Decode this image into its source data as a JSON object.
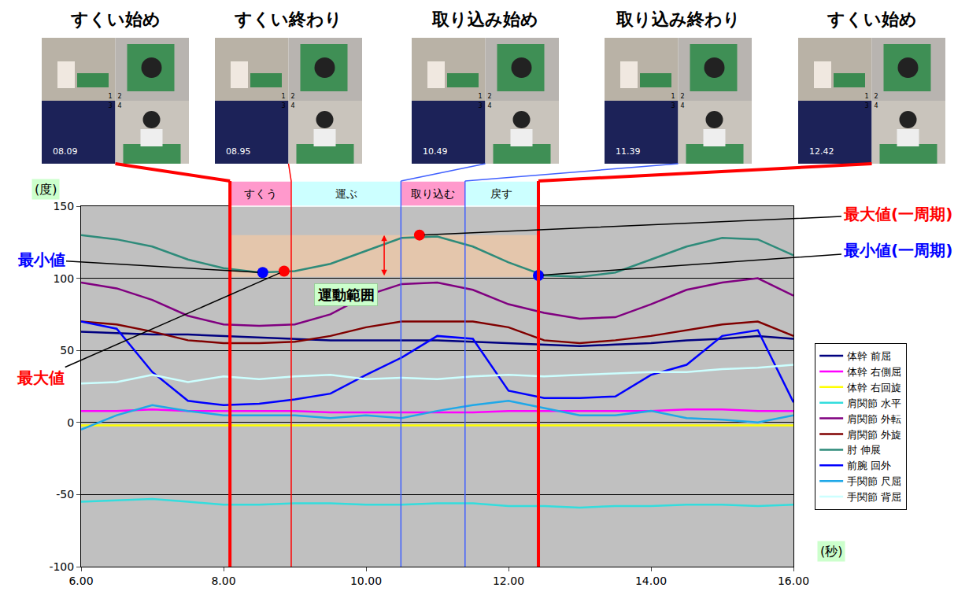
{
  "frames": [
    {
      "label": "すくい始め",
      "time": 8.09,
      "time_label": "08.09",
      "color": "#ff0000"
    },
    {
      "label": "すくい終わり",
      "time": 8.95,
      "time_label": "08.95",
      "color": "#ff0000"
    },
    {
      "label": "取り込み始め",
      "time": 10.49,
      "time_label": "10.49",
      "color": "#4060ff"
    },
    {
      "label": "取り込み終わり",
      "time": 11.39,
      "time_label": "11.39",
      "color": "#4060ff"
    },
    {
      "label": "すくい始め",
      "time": 12.42,
      "time_label": "12.42",
      "color": "#ff0000"
    }
  ],
  "quadrant_labels": [
    "1",
    "2",
    "3",
    "4"
  ],
  "chart_data": {
    "type": "line",
    "x_label": "(秒)",
    "y_label": "(度)",
    "x": [
      6,
      6.5,
      7,
      7.5,
      8,
      8.5,
      9,
      9.5,
      10,
      10.5,
      11,
      11.5,
      12,
      12.5,
      13,
      13.5,
      14,
      14.5,
      15,
      15.5,
      16
    ],
    "series": [
      {
        "name": "体幹 前屈",
        "color": "#000080",
        "values": [
          63,
          62,
          61,
          61,
          60,
          59,
          58,
          57,
          57,
          57,
          57,
          56,
          55,
          54,
          53,
          54,
          55,
          57,
          58,
          60,
          58
        ]
      },
      {
        "name": "体幹 右側屈",
        "color": "#ff00ff",
        "values": [
          8,
          8,
          9,
          8,
          8,
          8,
          8,
          7,
          7,
          7,
          7,
          7,
          8,
          8,
          8,
          8,
          8,
          9,
          9,
          8,
          8
        ]
      },
      {
        "name": "体幹 右回旋",
        "color": "#ffff00",
        "values": [
          -2,
          -2,
          -2,
          -2,
          -2,
          -2,
          -2,
          -2,
          -2,
          -2,
          -2,
          -2,
          -2,
          -2,
          -2,
          -2,
          -2,
          -2,
          -2,
          -2,
          -2
        ]
      },
      {
        "name": "肩関節 水平",
        "color": "#33dddd",
        "values": [
          -55,
          -54,
          -53,
          -55,
          -57,
          -57,
          -56,
          -56,
          -57,
          -57,
          -56,
          -56,
          -58,
          -58,
          -59,
          -58,
          -58,
          -57,
          -57,
          -58,
          -57
        ]
      },
      {
        "name": "肩関節 外転",
        "color": "#800080",
        "values": [
          97,
          93,
          85,
          74,
          68,
          67,
          68,
          75,
          88,
          96,
          97,
          92,
          82,
          76,
          72,
          73,
          82,
          92,
          97,
          100,
          88
        ]
      },
      {
        "name": "肩関節 外旋",
        "color": "#800000",
        "values": [
          70,
          68,
          63,
          57,
          55,
          55,
          56,
          60,
          66,
          70,
          70,
          70,
          66,
          57,
          55,
          57,
          60,
          64,
          68,
          70,
          60
        ]
      },
      {
        "name": "肘 伸展",
        "color": "#2e8b7a",
        "values": [
          130,
          127,
          122,
          113,
          107,
          104,
          105,
          110,
          119,
          128,
          129,
          122,
          111,
          102,
          101,
          104,
          113,
          122,
          128,
          127,
          116
        ]
      },
      {
        "name": "前腕 回外",
        "color": "#0000ff",
        "values": [
          70,
          65,
          35,
          15,
          12,
          13,
          16,
          20,
          33,
          45,
          60,
          58,
          22,
          17,
          17,
          18,
          33,
          40,
          60,
          64,
          14
        ]
      },
      {
        "name": "手関節 尺屈",
        "color": "#1fa8e8",
        "values": [
          -5,
          5,
          12,
          8,
          5,
          5,
          5,
          3,
          5,
          3,
          8,
          12,
          15,
          10,
          5,
          5,
          8,
          3,
          2,
          0,
          5
        ]
      },
      {
        "name": "手関節 背屈",
        "color": "#ccffff",
        "values": [
          27,
          28,
          33,
          28,
          32,
          30,
          32,
          33,
          30,
          31,
          30,
          32,
          33,
          32,
          33,
          34,
          35,
          35,
          37,
          38,
          40
        ]
      }
    ],
    "xlim": [
      6,
      16
    ],
    "xticks": [
      {
        "value": 6,
        "label": "6.00"
      },
      {
        "value": 8,
        "label": "8.00"
      },
      {
        "value": 10,
        "label": "10.00"
      },
      {
        "value": 12,
        "label": "12.00"
      },
      {
        "value": 14,
        "label": "14.00"
      },
      {
        "value": 16,
        "label": "16.00"
      }
    ],
    "ylim": [
      -100,
      150
    ],
    "yticks": [
      -100,
      -50,
      0,
      50,
      100,
      150
    ],
    "grid": true,
    "legend": "right",
    "phases": [
      {
        "label": "すくう",
        "start": 8.09,
        "end": 8.95,
        "color": "#ff99cc"
      },
      {
        "label": "運ぶ",
        "start": 8.95,
        "end": 10.49,
        "color": "#ccffff"
      },
      {
        "label": "取り込む",
        "start": 10.49,
        "end": 11.39,
        "color": "#ff99cc"
      },
      {
        "label": "戻す",
        "start": 11.39,
        "end": 12.42,
        "color": "#ccffff"
      }
    ],
    "range_band": {
      "label": "運動範囲",
      "x0": 8.09,
      "x1": 12.42,
      "y0": 101,
      "y1": 130
    },
    "points": [
      {
        "label": "最大値(一周期)",
        "x": 10.75,
        "y": 130,
        "color": "#ff0000"
      },
      {
        "label": "最小値(一周期)",
        "x": 12.42,
        "y": 102,
        "color": "#0000ff"
      },
      {
        "label": "最小値",
        "x": 8.55,
        "y": 104,
        "color": "#0000ff"
      },
      {
        "label": "最大値",
        "x": 8.85,
        "y": 105,
        "color": "#ff0000"
      }
    ]
  }
}
